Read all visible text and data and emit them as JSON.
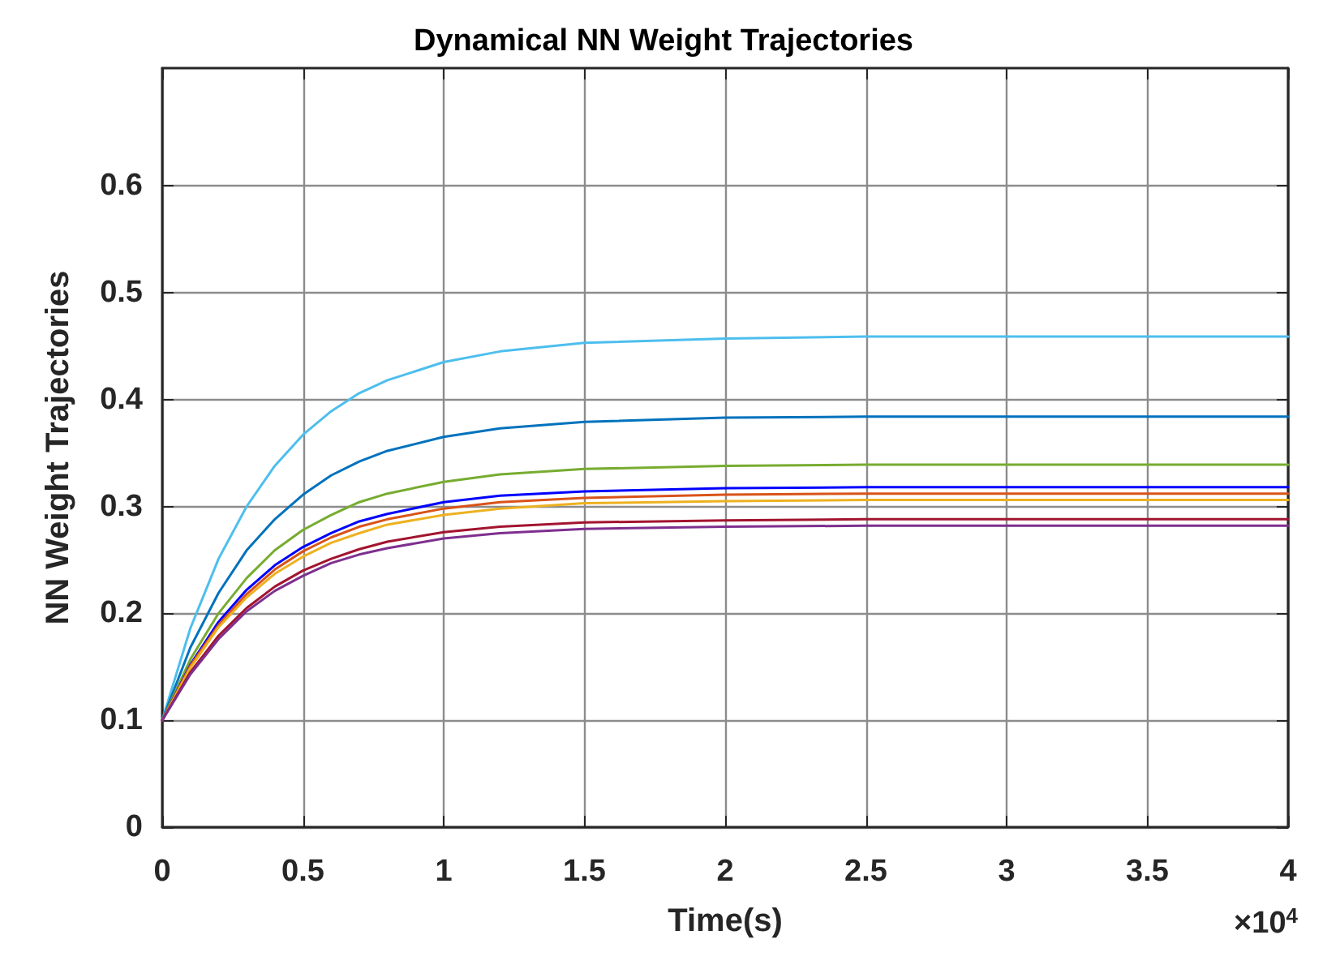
{
  "chart_data": {
    "type": "line",
    "title": "Dynamical NN Weight Trajectories",
    "xlabel": "Time(s)",
    "ylabel": "NN Weight Trajectories",
    "annotations": [
      "×10$^{4}$"
    ],
    "x": [
      0,
      0.1,
      0.2,
      0.3,
      0.4,
      0.5,
      0.6,
      0.7,
      0.8,
      1,
      1.2,
      1.5,
      2,
      2.5,
      3,
      3.5,
      4
    ],
    "series": [
      {
        "color": "#4dbeee",
        "values": [
          0.1,
          0.186,
          0.251,
          0.3,
          0.338,
          0.367,
          0.389,
          0.406,
          0.418,
          0.435,
          0.445,
          0.453,
          0.457,
          0.459,
          0.459,
          0.459,
          0.459
        ]
      },
      {
        "color": "#0072bd",
        "values": [
          0.1,
          0.168,
          0.219,
          0.259,
          0.288,
          0.311,
          0.329,
          0.342,
          0.352,
          0.365,
          0.373,
          0.379,
          0.383,
          0.384,
          0.384,
          0.384,
          0.384
        ]
      },
      {
        "color": "#77ac30",
        "values": [
          0.1,
          0.157,
          0.2,
          0.233,
          0.259,
          0.278,
          0.292,
          0.304,
          0.312,
          0.323,
          0.33,
          0.335,
          0.338,
          0.339,
          0.339,
          0.339,
          0.339
        ]
      },
      {
        "color": "#0000ff",
        "values": [
          0.1,
          0.152,
          0.192,
          0.222,
          0.245,
          0.262,
          0.275,
          0.286,
          0.293,
          0.304,
          0.31,
          0.314,
          0.317,
          0.318,
          0.318,
          0.318,
          0.318
        ]
      },
      {
        "color": "#d95319",
        "values": [
          0.1,
          0.151,
          0.189,
          0.218,
          0.241,
          0.258,
          0.271,
          0.281,
          0.288,
          0.298,
          0.304,
          0.308,
          0.311,
          0.312,
          0.312,
          0.312,
          0.312
        ]
      },
      {
        "color": "#edb120",
        "values": [
          0.1,
          0.149,
          0.187,
          0.215,
          0.237,
          0.253,
          0.266,
          0.275,
          0.283,
          0.292,
          0.298,
          0.303,
          0.305,
          0.306,
          0.306,
          0.306,
          0.306
        ]
      },
      {
        "color": "#a2142f",
        "values": [
          0.1,
          0.145,
          0.179,
          0.205,
          0.225,
          0.24,
          0.251,
          0.26,
          0.267,
          0.276,
          0.281,
          0.285,
          0.287,
          0.288,
          0.288,
          0.288,
          0.288
        ]
      },
      {
        "color": "#7e2f8e",
        "values": [
          0.1,
          0.143,
          0.176,
          0.202,
          0.221,
          0.235,
          0.247,
          0.255,
          0.261,
          0.27,
          0.275,
          0.279,
          0.281,
          0.282,
          0.282,
          0.282,
          0.282
        ]
      }
    ],
    "xlim": [
      0,
      4
    ],
    "xticks": [
      0,
      0.5,
      1,
      1.5,
      2,
      2.5,
      3,
      3.5,
      4
    ],
    "ylim": [
      0,
      0.71
    ],
    "yticks": [
      0,
      0.1,
      0.2,
      0.3,
      0.4,
      0.5,
      0.6
    ],
    "grid": true,
    "marker": "none",
    "line_style": "solid"
  }
}
